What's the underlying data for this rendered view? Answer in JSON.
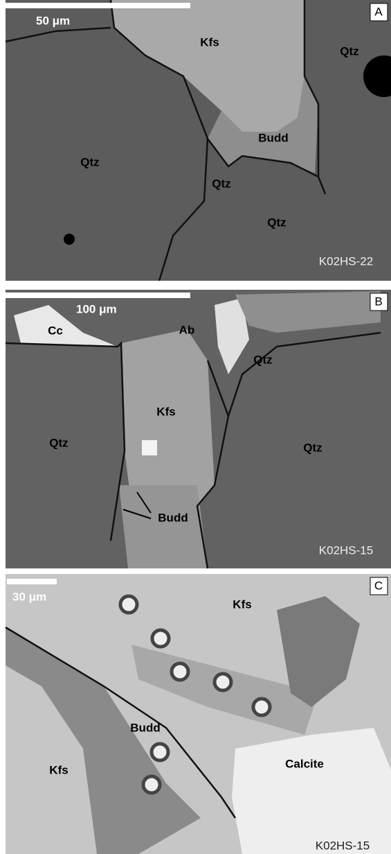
{
  "panels": [
    {
      "letter": "A",
      "scale_bar": "50 μm",
      "sample": "K02HS-22",
      "labels": [
        "Kfs",
        "Qtz",
        "Budd",
        "Qtz",
        "Qtz",
        "Qtz"
      ]
    },
    {
      "letter": "B",
      "scale_bar": "100 μm",
      "sample": "K02HS-15",
      "labels": [
        "Cc",
        "Ab",
        "Qtz",
        "Kfs",
        "Qtz",
        "Qtz",
        "Budd"
      ]
    },
    {
      "letter": "C",
      "scale_bar": "30 μm",
      "sample": "K02HS-15",
      "labels": [
        "Kfs",
        "Budd",
        "Kfs",
        "Calcite"
      ]
    }
  ]
}
